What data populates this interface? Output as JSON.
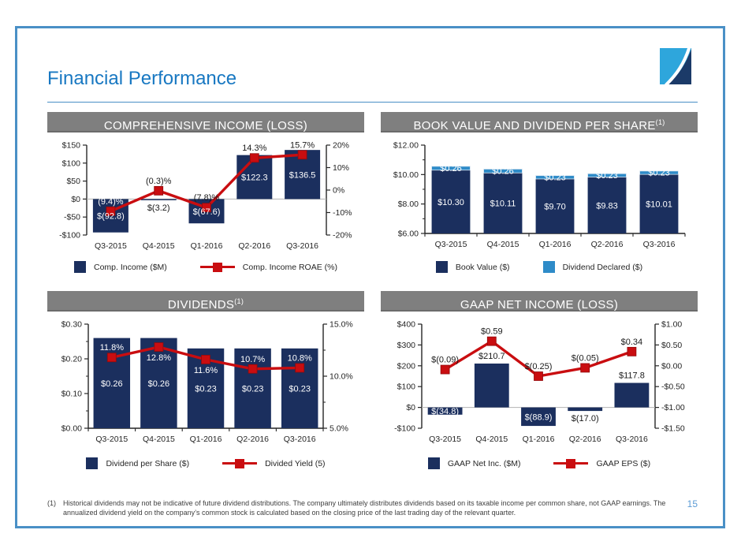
{
  "slide": {
    "title": "Financial Performance",
    "page_number": "15",
    "footnote_marker": "(1)",
    "footnote_text": "Historical dividends may not be indicative of future dividend distributions.  The company ultimately distributes dividends based on its taxable income per common share, not GAAP earnings. The annualized dividend yield on the company’s common stock is calculated based on the closing price of the last trading day of the relevant quarter."
  },
  "colors": {
    "navy": "#1b2f5e",
    "light_blue": "#2e8bc8",
    "red": "#c90d10",
    "red_dark": "#910a0c",
    "header_gray": "#7f7f7f",
    "title_blue": "#1878c2",
    "frame_blue": "#4a90c6",
    "page_number_blue": "#5b9bd5",
    "logo_light_blue": "#2ea6dc",
    "logo_navy": "#1b3a68"
  },
  "chart_data": [
    {
      "type": "bar-line",
      "title": "COMPREHENSIVE INCOME (LOSS)",
      "categories": [
        "Q3-2015",
        "Q4-2015",
        "Q1-2016",
        "Q2-2016",
        "Q3-2016"
      ],
      "bar": {
        "name": "Comp. Income ($M)",
        "values": [
          -92.8,
          -3.2,
          -67.6,
          122.3,
          136.5
        ],
        "labels": [
          "$(92.8)",
          "$(3.2)",
          "$(67.6)",
          "$122.3",
          "$136.5"
        ],
        "label_pos": [
          "inside",
          "out",
          "inside",
          "inside",
          "inside"
        ],
        "label_colors": [
          "#ffffff",
          "#1a1a1a",
          "#ffffff",
          "#ffffff",
          "#ffffff"
        ]
      },
      "line": {
        "name": "Comp. Income ROAE (%)",
        "values": [
          -9.4,
          -0.3,
          -7.8,
          14.3,
          15.7
        ],
        "labels": [
          "(9.4)%",
          "(0.3)%",
          "(7.8)%",
          "14.3%",
          "15.7%"
        ],
        "label_pos": [
          "above",
          "above",
          "above",
          "above",
          "above"
        ],
        "label_colors": [
          "#ffffff",
          "#1a1a1a",
          "#1a1a1a",
          "#1a1a1a",
          "#1a1a1a"
        ]
      },
      "left_axis": {
        "min": -100,
        "max": 150,
        "ticks": [
          {
            "v": 150,
            "t": "$150"
          },
          {
            "v": 100,
            "t": "$100"
          },
          {
            "v": 50,
            "t": "$50"
          },
          {
            "v": 0,
            "t": "$0"
          },
          {
            "v": -50,
            "t": "-$50"
          },
          {
            "v": -100,
            "t": "-$100"
          }
        ],
        "minor": []
      },
      "right_axis": {
        "min": -20,
        "max": 20,
        "ticks": [
          {
            "v": 20,
            "t": "20%"
          },
          {
            "v": 10,
            "t": "10%"
          },
          {
            "v": 0,
            "t": "0%"
          },
          {
            "v": -10,
            "t": "-10%"
          },
          {
            "v": -20,
            "t": "-20%"
          }
        ],
        "minor": []
      },
      "legend": [
        "Comp. Income ($M)",
        "Comp. Income ROAE (%)"
      ]
    },
    {
      "type": "stacked-bar",
      "title": "BOOK VALUE AND DIVIDEND PER SHARE",
      "title_sup": "(1)",
      "categories": [
        "Q3-2015",
        "Q4-2015",
        "Q1-2016",
        "Q2-2016",
        "Q3-2016"
      ],
      "series": [
        {
          "name": "Book Value ($)",
          "values": [
            10.3,
            10.11,
            9.7,
            9.83,
            10.01
          ],
          "labels": [
            "$10.30",
            "$10.11",
            "$9.70",
            "$9.83",
            "$10.01"
          ]
        },
        {
          "name": "Dividend Declared ($)",
          "values": [
            0.26,
            0.26,
            0.23,
            0.23,
            0.23
          ],
          "labels": [
            "$0.26",
            "$0.26",
            "$0.23",
            "$0.23",
            "$0.23"
          ]
        }
      ],
      "left_axis": {
        "min": 6,
        "max": 12,
        "ticks": [
          {
            "v": 12,
            "t": "$12.00"
          },
          {
            "v": 10,
            "t": "$10.00"
          },
          {
            "v": 8,
            "t": "$8.00"
          },
          {
            "v": 6,
            "t": "$6.00"
          }
        ],
        "minor": [
          11,
          9,
          7
        ]
      },
      "legend": [
        "Book Value ($)",
        "Dividend Declared ($)"
      ]
    },
    {
      "type": "bar-line",
      "title": "DIVIDENDS",
      "title_sup": "(1)",
      "categories": [
        "Q3-2015",
        "Q4-2015",
        "Q1-2016",
        "Q2-2016",
        "Q3-2016"
      ],
      "bar": {
        "name": "Dividend per Share ($)",
        "values": [
          0.26,
          0.26,
          0.23,
          0.23,
          0.23
        ],
        "labels": [
          "$0.26",
          "$0.26",
          "$0.23",
          "$0.23",
          "$0.23"
        ],
        "label_pos": [
          "inside",
          "inside",
          "inside",
          "inside",
          "inside"
        ],
        "label_colors": [
          "#ffffff",
          "#ffffff",
          "#ffffff",
          "#ffffff",
          "#ffffff"
        ]
      },
      "line": {
        "name": "Divided Yield (5)",
        "values": [
          11.8,
          12.8,
          11.6,
          10.7,
          10.8
        ],
        "labels": [
          "11.8%",
          "12.8%",
          "11.6%",
          "10.7%",
          "10.8%"
        ],
        "label_pos": [
          "above",
          "below",
          "below",
          "above",
          "above"
        ],
        "label_colors": [
          "#ffffff",
          "#ffffff",
          "#ffffff",
          "#ffffff",
          "#ffffff"
        ]
      },
      "left_axis": {
        "min": 0,
        "max": 0.3,
        "ticks": [
          {
            "v": 0.3,
            "t": "$0.30"
          },
          {
            "v": 0.2,
            "t": "$0.20"
          },
          {
            "v": 0.1,
            "t": "$0.10"
          },
          {
            "v": 0,
            "t": "$0.00"
          }
        ],
        "minor": [
          0.25,
          0.15,
          0.05
        ]
      },
      "right_axis": {
        "min": 5,
        "max": 15,
        "ticks": [
          {
            "v": 15,
            "t": "15.0%"
          },
          {
            "v": 10,
            "t": "10.0%"
          },
          {
            "v": 5,
            "t": "5.0%"
          }
        ],
        "minor": [
          12.5,
          7.5
        ]
      },
      "legend": [
        "Dividend per Share ($)",
        "Divided Yield (5)"
      ]
    },
    {
      "type": "bar-line",
      "title": "GAAP NET INCOME (LOSS)",
      "categories": [
        "Q3-2015",
        "Q4-2015",
        "Q1-2016",
        "Q2-2016",
        "Q3-2016"
      ],
      "bar": {
        "name": "GAAP Net Inc. ($M)",
        "values": [
          -34.8,
          210.7,
          -88.9,
          -17.0,
          117.8
        ],
        "labels": [
          "$(34.8)",
          "$210.7",
          "$(88.9)",
          "$(17.0)",
          "$117.8"
        ],
        "label_pos": [
          "inside",
          "out",
          "inside",
          "out",
          "out"
        ],
        "label_colors": [
          "#ffffff",
          "#1a1a1a",
          "#ffffff",
          "#1a1a1a",
          "#1a1a1a"
        ]
      },
      "line": {
        "name": "GAAP EPS ($)",
        "values": [
          -0.09,
          0.59,
          -0.25,
          -0.05,
          0.34
        ],
        "labels": [
          "$(0.09)",
          "$0.59",
          "$(0.25)",
          "$(0.05)",
          "$0.34"
        ],
        "label_pos": [
          "above",
          "above",
          "above",
          "above",
          "above"
        ],
        "label_colors": [
          "#1a1a1a",
          "#1a1a1a",
          "#1a1a1a",
          "#1a1a1a",
          "#1a1a1a"
        ]
      },
      "left_axis": {
        "min": -100,
        "max": 400,
        "ticks": [
          {
            "v": 400,
            "t": "$400"
          },
          {
            "v": 300,
            "t": "$300"
          },
          {
            "v": 200,
            "t": "$200"
          },
          {
            "v": 100,
            "t": "$100"
          },
          {
            "v": 0,
            "t": "$0"
          },
          {
            "v": -100,
            "t": "-$100"
          }
        ],
        "minor": []
      },
      "right_axis": {
        "min": -1.5,
        "max": 1.0,
        "ticks": [
          {
            "v": 1.0,
            "t": "$1.00"
          },
          {
            "v": 0.5,
            "t": "$0.50"
          },
          {
            "v": 0,
            "t": "$0.00"
          },
          {
            "v": -0.5,
            "t": "-$0.50"
          },
          {
            "v": -1.0,
            "t": "-$1.00"
          },
          {
            "v": -1.5,
            "t": "-$1.50"
          }
        ],
        "minor": []
      },
      "legend": [
        "GAAP Net Inc. ($M)",
        "GAAP EPS ($)"
      ]
    }
  ]
}
